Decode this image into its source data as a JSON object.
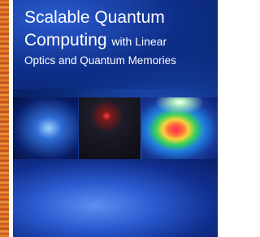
{
  "cover": {
    "title": [
      "Scalable Quantum",
      "Computing",
      "with Linear",
      "Optics and Quantum Memories"
    ]
  }
}
